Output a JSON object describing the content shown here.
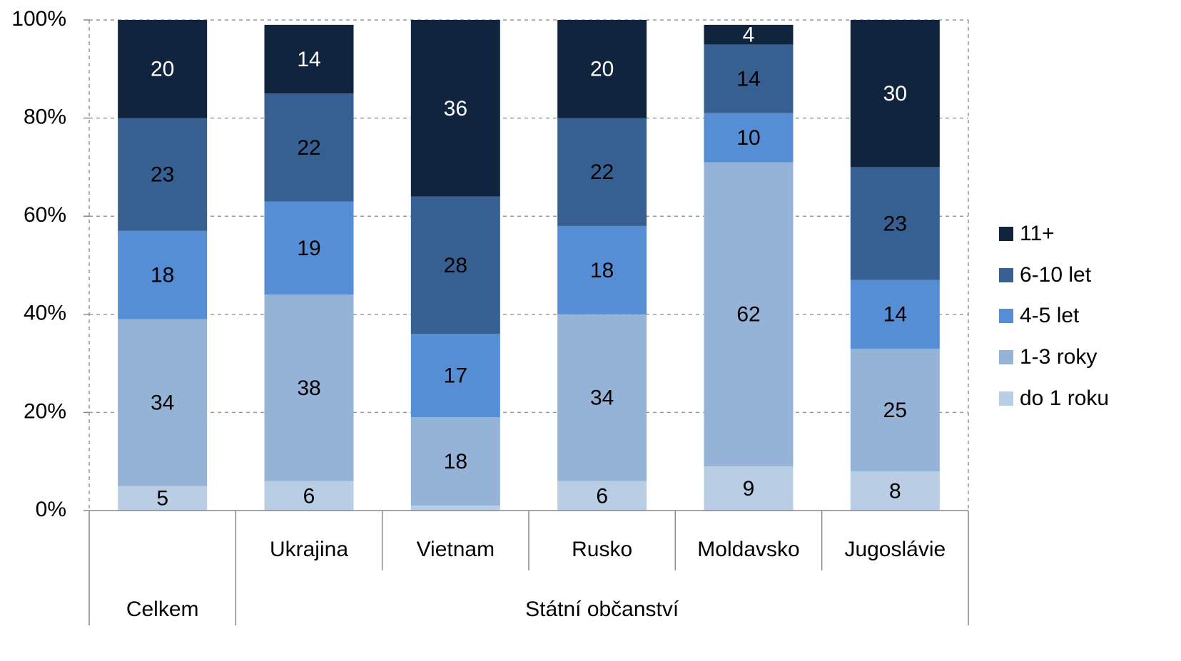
{
  "chart_data": {
    "type": "stacked_bar",
    "categories": [
      null,
      "Ukrajina",
      "Vietnam",
      "Rusko",
      "Moldavsko",
      "Jugoslávie"
    ],
    "groups": [
      {
        "label": "Celkem",
        "span": 1
      },
      {
        "label": "Státní občanství",
        "span": 5
      }
    ],
    "series": [
      {
        "name": "do 1 roku",
        "color": "#b9cde5",
        "label_color": "#000000",
        "values": [
          5,
          6,
          1,
          6,
          9,
          8
        ],
        "value_labels": [
          "5",
          "6",
          null,
          "6",
          "9",
          "8"
        ]
      },
      {
        "name": "1-3 roky",
        "color": "#95b3d7",
        "label_color": "#000000",
        "values": [
          34,
          38,
          18,
          34,
          62,
          25
        ]
      },
      {
        "name": "4-5 let",
        "color": "#558ed5",
        "label_color": "#000000",
        "values": [
          18,
          19,
          17,
          18,
          10,
          14
        ]
      },
      {
        "name": "6-10 let",
        "color": "#376092",
        "label_color": "#000000",
        "values": [
          23,
          22,
          28,
          22,
          14,
          23
        ]
      },
      {
        "name": "11+",
        "color": "#10243e",
        "label_color": "#ffffff",
        "values": [
          20,
          14,
          36,
          20,
          4,
          30
        ]
      }
    ],
    "ylim": [
      0,
      100
    ],
    "yticks": [
      {
        "value": 0,
        "label": "0%"
      },
      {
        "value": 20,
        "label": "20%"
      },
      {
        "value": 40,
        "label": "40%"
      },
      {
        "value": 60,
        "label": "60%"
      },
      {
        "value": 80,
        "label": "80%"
      },
      {
        "value": 100,
        "label": "100%"
      }
    ],
    "grid": true,
    "legend": "right"
  }
}
